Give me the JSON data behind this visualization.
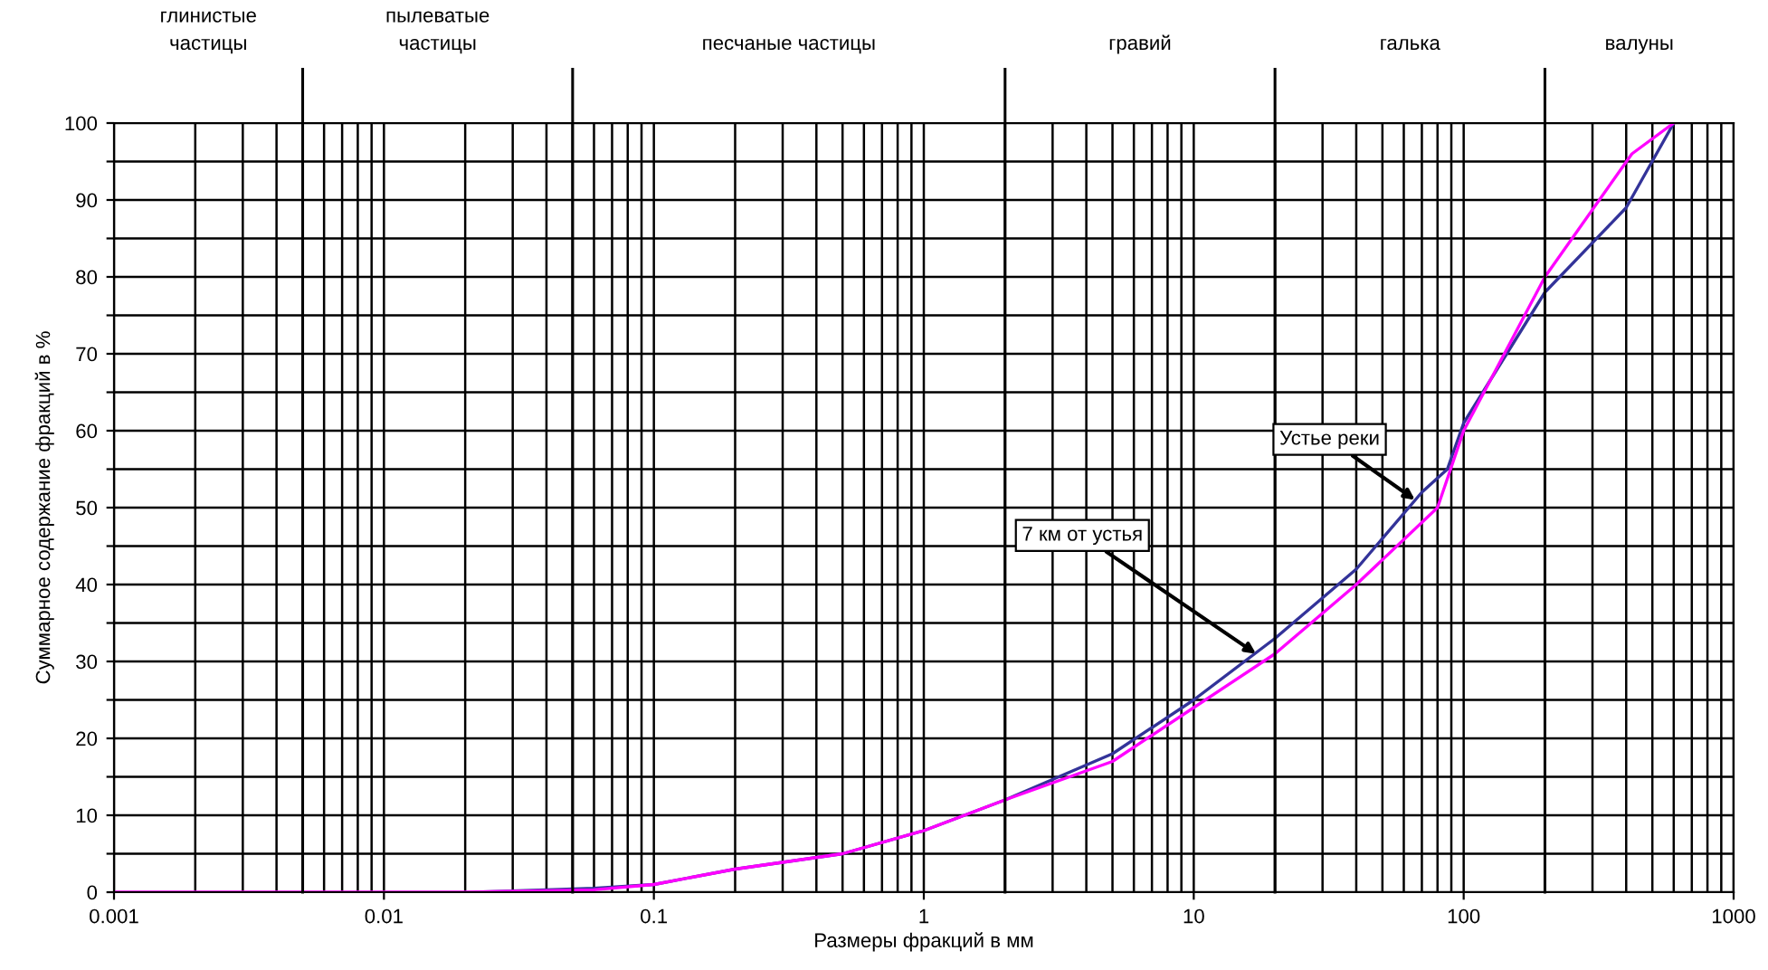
{
  "chart_data": {
    "type": "line",
    "xlabel": "Размеры фракций в мм",
    "ylabel": "Суммарное содержание фракций в %",
    "log": "x",
    "xlim": [
      0.001,
      1000
    ],
    "xticks": [
      {
        "value": 0.001,
        "label": "0.001"
      },
      {
        "value": 0.01,
        "label": "0.01"
      },
      {
        "value": 0.1,
        "label": "0.1"
      },
      1,
      10,
      100,
      1000
    ],
    "ylim": [
      0,
      100
    ],
    "yticks": [
      0,
      {
        "value": 5,
        "label": null
      },
      10,
      {
        "value": 15,
        "label": null
      },
      20,
      {
        "value": 25,
        "label": null
      },
      30,
      {
        "value": 35,
        "label": null
      },
      40,
      {
        "value": 45,
        "label": null
      },
      50,
      {
        "value": 55,
        "label": null
      },
      60,
      {
        "value": 65,
        "label": null
      },
      70,
      {
        "value": 75,
        "label": null
      },
      80,
      {
        "value": 85,
        "label": null
      },
      90,
      {
        "value": 95,
        "label": null
      },
      100
    ],
    "grid": true,
    "series": [
      {
        "color": "#333399",
        "x": [
          0.022,
          0.06,
          0.1,
          0.2,
          0.5,
          1,
          2,
          5,
          10,
          20,
          40,
          70,
          87,
          100,
          200,
          400,
          600
        ],
        "values": [
          0,
          0.5,
          1,
          3,
          5,
          8,
          12,
          18,
          25,
          33,
          42,
          52,
          55,
          61,
          78,
          89,
          100
        ]
      },
      {
        "color": "#ff00ff",
        "x": [
          0.001,
          0.02,
          0.06,
          0.1,
          0.2,
          0.5,
          1,
          2,
          5,
          10,
          20,
          40,
          80,
          100,
          200,
          420,
          600
        ],
        "values": [
          0,
          0,
          0.3,
          1,
          3,
          5,
          8,
          12,
          17,
          24,
          31,
          40,
          50,
          60,
          80,
          96,
          100
        ]
      }
    ],
    "annotations": [
      {
        "text": "Устье реки",
        "x": 66,
        "y": 51
      },
      {
        "text": "7 км от устья",
        "x": 17,
        "y": 31
      },
      "глинистые\nчастицы",
      "пылеватые\nчастицы",
      "песчаные частицы",
      "гравий",
      "галька",
      "валуны"
    ],
    "ref_lines": [
      {
        "axis": "x",
        "value": 0.005
      },
      {
        "axis": "x",
        "value": 0.05
      },
      {
        "axis": "x",
        "value": 2
      },
      {
        "axis": "x",
        "value": 20
      },
      {
        "axis": "x",
        "value": 200
      }
    ]
  }
}
